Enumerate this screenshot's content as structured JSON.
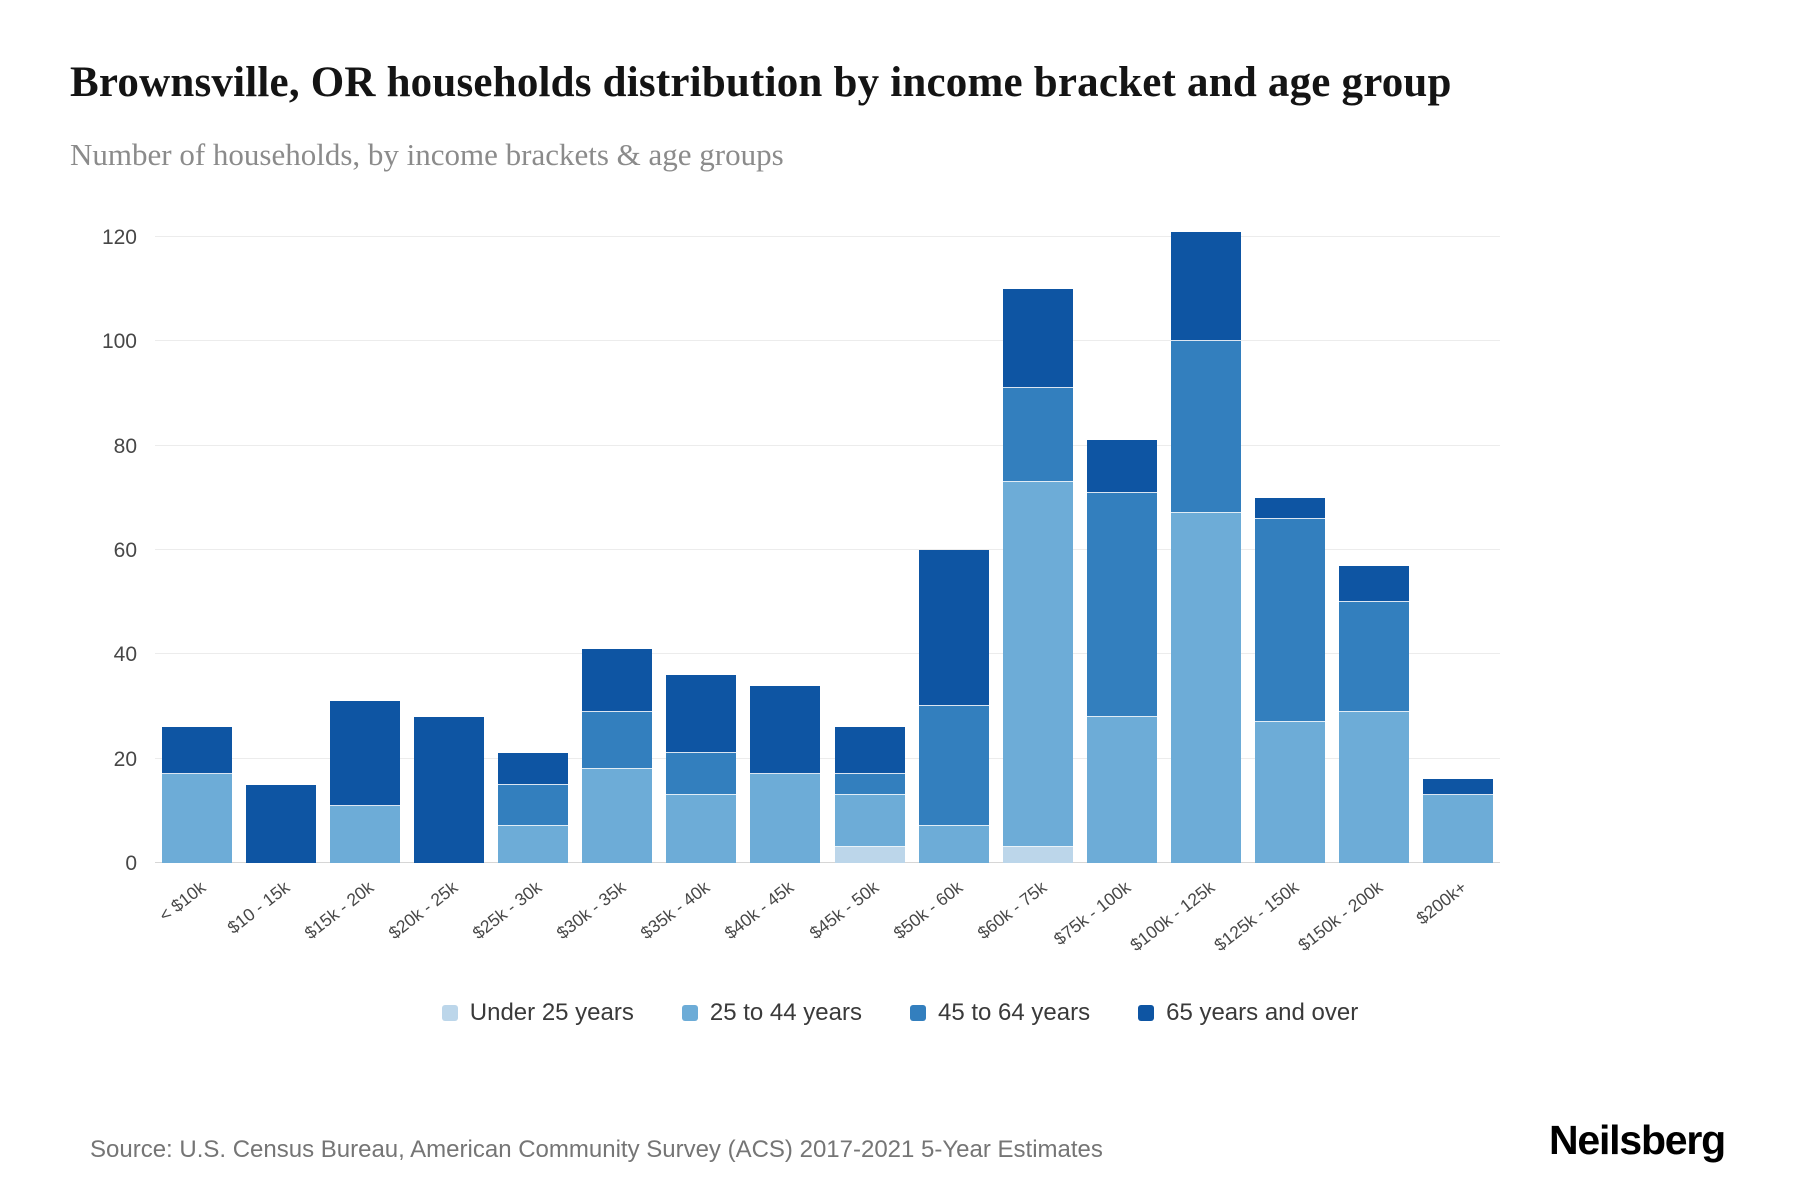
{
  "page": {
    "title": "Brownsville, OR households distribution by income bracket and age group",
    "subtitle": "Number of households, by income brackets & age groups",
    "source": "Source: U.S. Census Bureau, American Community Survey (ACS) 2017-2021 5-Year Estimates",
    "brand": "Neilsberg"
  },
  "chart_data": {
    "type": "bar",
    "stacked": true,
    "title": "Brownsville, OR households distribution by income bracket and age group",
    "subtitle": "Number of households, by income brackets & age groups",
    "xlabel": "",
    "ylabel": "Number of households",
    "ylim": [
      0,
      120
    ],
    "yticks": [
      0,
      20,
      40,
      60,
      80,
      100,
      120
    ],
    "grid": true,
    "legend_position": "bottom",
    "categories": [
      "< $10k",
      "$10 - 15k",
      "$15k - 20k",
      "$20k - 25k",
      "$25k - 30k",
      "$30k - 35k",
      "$35k - 40k",
      "$40k - 45k",
      "$45k - 50k",
      "$50k - 60k",
      "$60k - 75k",
      "$75k - 100k",
      "$100k - 125k",
      "$125k - 150k",
      "$150k - 200k",
      "$200k+"
    ],
    "series": [
      {
        "name": "Under 25 years",
        "color": "#bcd6ea",
        "values": [
          0,
          0,
          0,
          0,
          0,
          0,
          0,
          0,
          3,
          0,
          3,
          0,
          0,
          0,
          0,
          0
        ]
      },
      {
        "name": "25 to 44 years",
        "color": "#6dacd7",
        "values": [
          17,
          0,
          11,
          0,
          7,
          18,
          13,
          17,
          10,
          7,
          70,
          28,
          67,
          27,
          29,
          13
        ]
      },
      {
        "name": "45 to 64 years",
        "color": "#337fbe",
        "values": [
          0,
          0,
          0,
          0,
          8,
          11,
          8,
          0,
          4,
          23,
          18,
          43,
          33,
          39,
          21,
          0
        ]
      },
      {
        "name": "65 years and over",
        "color": "#0e55a3",
        "values": [
          9,
          15,
          20,
          28,
          6,
          12,
          15,
          17,
          9,
          30,
          19,
          10,
          21,
          4,
          7,
          3
        ]
      }
    ],
    "totals": [
      26,
      15,
      31,
      28,
      21,
      41,
      36,
      34,
      26,
      60,
      110,
      81,
      121,
      70,
      57,
      16
    ]
  }
}
